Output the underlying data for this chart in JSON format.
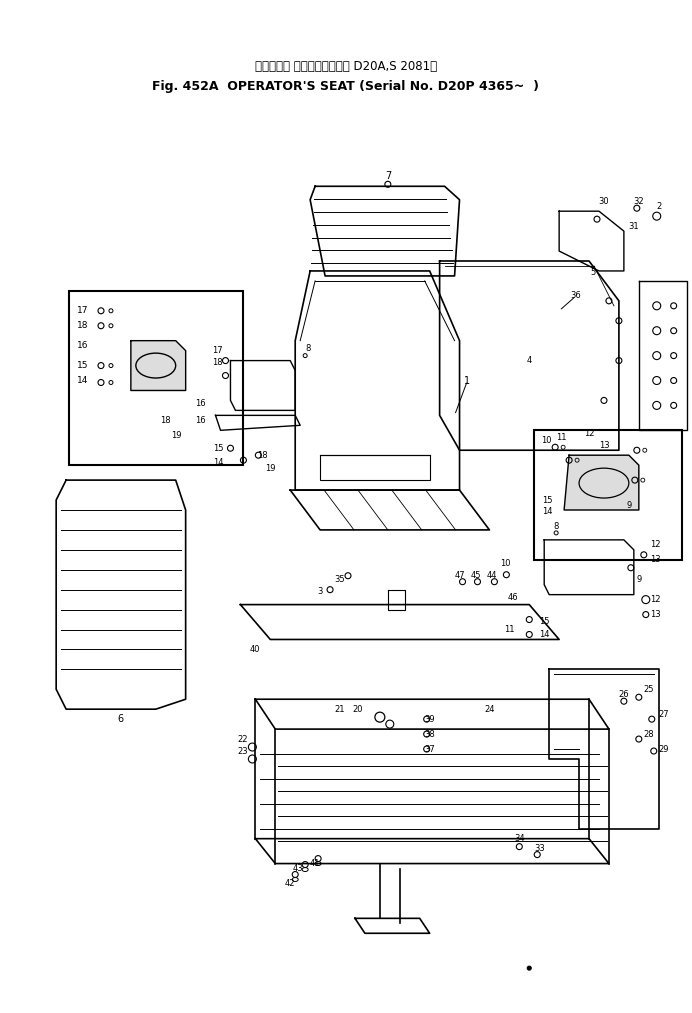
{
  "title_line1": "オペレータ シート（適用号機 D20A,S 2081～",
  "title_line2": "Fig. 452A  OPERATOR'S SEAT (Serial No. D20P 4365~  )",
  "bg_color": "#ffffff",
  "fg_color": "#000000",
  "fig_width": 6.92,
  "fig_height": 10.13,
  "dpi": 100
}
